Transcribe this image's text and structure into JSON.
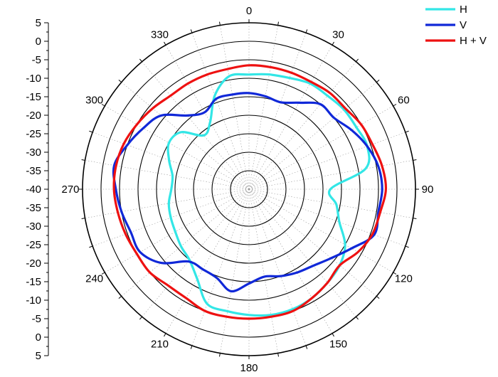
{
  "chart_data": {
    "type": "polar-line",
    "angle_direction": "clockwise",
    "angle_zero": "top",
    "angle_ticks": [
      0,
      30,
      60,
      90,
      120,
      150,
      180,
      210,
      240,
      270,
      300,
      330
    ],
    "angle_tick_labels": [
      "0",
      "30",
      "60",
      "90",
      "120",
      "150",
      "180",
      "210",
      "240",
      "270",
      "300",
      "330"
    ],
    "r_range": [
      -40,
      5
    ],
    "r_grid": [
      -35,
      -30,
      -25,
      -20,
      -15,
      -10,
      -5,
      0,
      5
    ],
    "r_axis_tick_labels": [
      "5",
      "0",
      "-5",
      "-10",
      "-15",
      "-20",
      "-25",
      "-30",
      "-35",
      "-40",
      "-35",
      "-30",
      "-25",
      "-20",
      "-15",
      "-10",
      "-5",
      "0",
      "5"
    ],
    "legend_position": "top-right",
    "series": [
      {
        "name": "H",
        "color": "#33e6e6",
        "angles": [
          0,
          10,
          20,
          30,
          40,
          50,
          60,
          70,
          80,
          90,
          100,
          110,
          120,
          130,
          140,
          150,
          160,
          170,
          180,
          190,
          200,
          210,
          220,
          230,
          240,
          250,
          260,
          270,
          280,
          290,
          300,
          310,
          320,
          330,
          340,
          350,
          360
        ],
        "values": [
          -9,
          -8.5,
          -8,
          -7,
          -7,
          -6.5,
          -6.5,
          -6,
          -8,
          -18,
          -16,
          -14,
          -10,
          -8,
          -7,
          -6,
          -5.5,
          -5.5,
          -6,
          -6.5,
          -7,
          -12,
          -15,
          -16,
          -17,
          -17.5,
          -18,
          -19,
          -19,
          -17,
          -15,
          -16,
          -21,
          -19,
          -13,
          -9,
          -9
        ]
      },
      {
        "name": "V",
        "color": "#1028d8",
        "angles": [
          0,
          10,
          20,
          30,
          40,
          50,
          60,
          70,
          80,
          90,
          100,
          110,
          120,
          130,
          140,
          150,
          160,
          170,
          180,
          190,
          200,
          210,
          220,
          230,
          240,
          250,
          260,
          270,
          280,
          290,
          300,
          310,
          320,
          330,
          340,
          350,
          360
        ],
        "values": [
          -14,
          -14.5,
          -15,
          -13,
          -10,
          -10,
          -8,
          -6,
          -4.5,
          -4,
          -4.5,
          -4,
          -8,
          -11,
          -13,
          -14,
          -15,
          -16,
          -14.5,
          -12,
          -14.5,
          -15,
          -14.5,
          -9,
          -6,
          -6,
          -5,
          -4,
          -3,
          -5,
          -7,
          -9,
          -14,
          -16,
          -14,
          -14,
          -14
        ]
      },
      {
        "name": "H + V",
        "color": "#ee1111",
        "angles": [
          0,
          10,
          20,
          30,
          40,
          50,
          60,
          70,
          80,
          90,
          100,
          110,
          120,
          130,
          140,
          150,
          160,
          170,
          180,
          190,
          200,
          210,
          220,
          230,
          240,
          250,
          260,
          270,
          280,
          290,
          300,
          310,
          320,
          330,
          340,
          350,
          360
        ],
        "values": [
          -6.5,
          -6.5,
          -6.5,
          -6.5,
          -6,
          -6,
          -5,
          -4.5,
          -3.5,
          -3,
          -4,
          -4.5,
          -6,
          -8,
          -7,
          -6,
          -5,
          -5,
          -5,
          -5,
          -5,
          -6,
          -6,
          -5,
          -5,
          -4.5,
          -4,
          -3.5,
          -3.5,
          -4,
          -5,
          -6,
          -7,
          -7,
          -7,
          -7,
          -6.5
        ]
      }
    ]
  }
}
